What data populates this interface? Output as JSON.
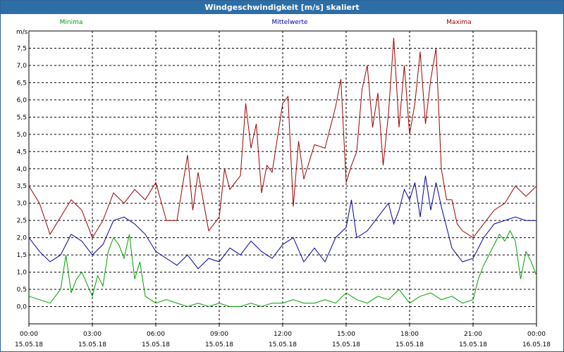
{
  "window": {
    "title": "Windgeschwindigkeit [m/s] skaliert"
  },
  "chart_data": {
    "type": "line",
    "title": "Windgeschwindigkeit [m/s] skaliert",
    "ylabel": "m/s",
    "ylim": [
      -0.5,
      8.0
    ],
    "y_ticks": [
      "0,0",
      "0,5",
      "1,0",
      "1,5",
      "2,0",
      "2,5",
      "3,0",
      "3,5",
      "4,0",
      "4,5",
      "5,0",
      "5,5",
      "6,0",
      "6,5",
      "7,0",
      "7,5"
    ],
    "x_ticks": [
      {
        "time": "00:00",
        "date": "15.05.18"
      },
      {
        "time": "03:00",
        "date": "15.05.18"
      },
      {
        "time": "06:00",
        "date": "15.05.18"
      },
      {
        "time": "09:00",
        "date": "15.05.18"
      },
      {
        "time": "12:00",
        "date": "15.05.18"
      },
      {
        "time": "15:00",
        "date": "15.05.18"
      },
      {
        "time": "18:00",
        "date": "15.05.18"
      },
      {
        "time": "21:00",
        "date": "15.05.18"
      },
      {
        "time": "00:00",
        "date": "16.05.18"
      }
    ],
    "xlim_hours": [
      0,
      24
    ],
    "grid": true,
    "series": [
      {
        "name": "Minima",
        "color": "#00a000",
        "x": [
          0,
          0.5,
          1,
          1.5,
          1.75,
          2,
          2.25,
          2.5,
          3,
          3.25,
          3.5,
          3.75,
          4,
          4.25,
          4.5,
          4.75,
          5,
          5.25,
          5.5,
          6,
          6.5,
          7,
          7.5,
          8,
          8.5,
          9,
          9.5,
          10,
          10.5,
          11,
          11.5,
          12,
          12.5,
          13,
          13.5,
          14,
          14.5,
          15,
          15.5,
          16,
          16.5,
          17,
          17.5,
          18,
          18.5,
          19,
          19.5,
          20,
          20.5,
          21,
          21.25,
          21.5,
          21.75,
          22,
          22.25,
          22.5,
          22.75,
          23,
          23.25,
          23.5,
          23.75,
          24
        ],
        "y": [
          0.3,
          0.2,
          0.1,
          0.5,
          1.5,
          0.4,
          0.8,
          1.0,
          0.3,
          0.9,
          0.6,
          1.6,
          2.0,
          1.8,
          1.4,
          2.1,
          0.8,
          1.3,
          0.3,
          0.1,
          0.2,
          0.1,
          0.0,
          0.1,
          0.0,
          0.1,
          0.0,
          0.0,
          0.1,
          0.0,
          0.1,
          0.1,
          0.2,
          0.1,
          0.1,
          0.2,
          0.1,
          0.4,
          0.2,
          0.1,
          0.3,
          0.2,
          0.5,
          0.1,
          0.3,
          0.4,
          0.2,
          0.3,
          0.1,
          0.2,
          0.8,
          1.2,
          1.5,
          1.8,
          2.1,
          1.9,
          2.2,
          1.9,
          0.8,
          1.6,
          1.3,
          0.9
        ]
      },
      {
        "name": "Mittelwerte",
        "color": "#0000a0",
        "x": [
          0,
          0.5,
          1,
          1.5,
          2,
          2.5,
          3,
          3.5,
          4,
          4.5,
          5,
          5.5,
          6,
          6.5,
          7,
          7.5,
          8,
          8.5,
          9,
          9.5,
          10,
          10.5,
          11,
          11.5,
          12,
          12.5,
          13,
          13.5,
          14,
          14.5,
          15,
          15.25,
          15.5,
          16,
          16.5,
          17,
          17.25,
          17.5,
          17.75,
          18,
          18.25,
          18.5,
          18.75,
          19,
          19.25,
          19.5,
          20,
          20.5,
          21,
          21.5,
          22,
          22.5,
          23,
          23.5,
          24
        ],
        "y": [
          2.0,
          1.6,
          1.3,
          1.5,
          2.1,
          1.9,
          1.5,
          1.8,
          2.5,
          2.6,
          2.4,
          2.1,
          1.6,
          1.4,
          1.2,
          1.5,
          1.1,
          1.4,
          1.3,
          1.7,
          1.5,
          1.9,
          1.6,
          1.4,
          1.8,
          2.0,
          1.3,
          1.7,
          1.3,
          2.0,
          2.3,
          3.1,
          2.0,
          2.2,
          2.6,
          3.0,
          2.4,
          2.8,
          3.4,
          3.1,
          3.6,
          2.6,
          3.8,
          2.8,
          3.6,
          2.9,
          1.7,
          1.3,
          1.4,
          2.0,
          2.4,
          2.5,
          2.6,
          2.5,
          2.5
        ]
      },
      {
        "name": "Maxima",
        "color": "#a00000",
        "x": [
          0,
          0.5,
          1,
          1.5,
          2,
          2.5,
          3,
          3.5,
          4,
          4.5,
          5,
          5.5,
          6,
          6.5,
          7,
          7.5,
          7.75,
          8,
          8.5,
          9,
          9.25,
          9.5,
          10,
          10.25,
          10.5,
          10.75,
          11,
          11.25,
          11.5,
          12,
          12.25,
          12.5,
          12.75,
          13,
          13.5,
          14,
          14.25,
          14.5,
          14.75,
          15,
          15.25,
          15.5,
          15.75,
          16,
          16.25,
          16.5,
          16.75,
          17,
          17.25,
          17.5,
          17.75,
          18,
          18.25,
          18.5,
          18.75,
          19,
          19.25,
          19.5,
          19.75,
          20,
          20.25,
          20.5,
          21,
          21.5,
          22,
          22.5,
          23,
          23.5,
          24
        ],
        "y": [
          3.5,
          3.0,
          2.1,
          2.6,
          3.1,
          2.8,
          2.0,
          2.5,
          3.3,
          3.0,
          3.4,
          3.1,
          3.6,
          2.5,
          2.5,
          4.4,
          2.8,
          3.9,
          2.2,
          2.6,
          4.0,
          3.4,
          3.8,
          5.9,
          4.6,
          5.3,
          3.3,
          4.1,
          3.9,
          5.9,
          6.1,
          2.9,
          4.8,
          3.7,
          4.7,
          4.6,
          5.2,
          5.8,
          6.6,
          3.6,
          4.1,
          4.5,
          6.3,
          7.0,
          5.2,
          6.2,
          4.1,
          5.6,
          7.8,
          5.2,
          7.0,
          5.0,
          5.9,
          7.4,
          5.3,
          6.6,
          7.5,
          4.0,
          3.1,
          3.1,
          2.4,
          2.2,
          2.0,
          2.4,
          2.8,
          3.0,
          3.5,
          3.2,
          3.5
        ]
      }
    ]
  }
}
